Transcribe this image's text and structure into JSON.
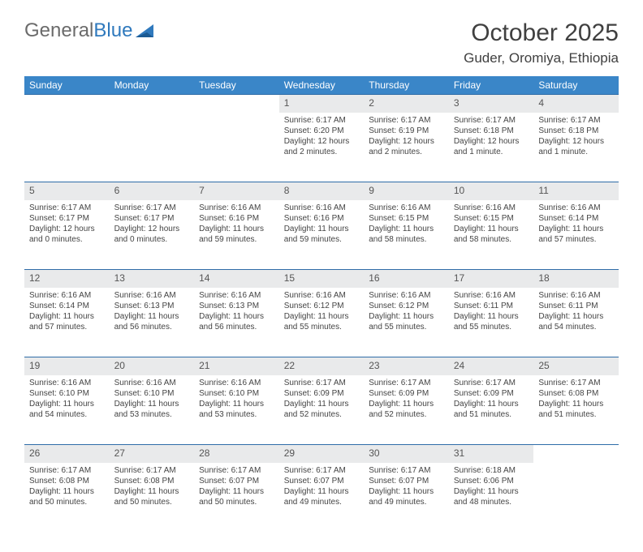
{
  "logo": {
    "text_a": "General",
    "text_b": "Blue",
    "accent": "#2f79bd",
    "gray": "#6b6b6b"
  },
  "title": "October 2025",
  "location": "Guder, Oromiya, Ethiopia",
  "theme": {
    "header_bg": "#3a86c8",
    "header_text": "#ffffff",
    "daynum_bg": "#e9eaeb",
    "row_border": "#2e6ca8",
    "body_text": "#444444",
    "page_bg": "#ffffff",
    "cell_font_size": 10,
    "header_font_size": 12,
    "title_font_size": 30,
    "location_font_size": 17
  },
  "weekdays": [
    "Sunday",
    "Monday",
    "Tuesday",
    "Wednesday",
    "Thursday",
    "Friday",
    "Saturday"
  ],
  "weeks": [
    [
      null,
      null,
      null,
      {
        "n": "1",
        "sr": "Sunrise: 6:17 AM",
        "ss": "Sunset: 6:20 PM",
        "d1": "Daylight: 12 hours",
        "d2": "and 2 minutes."
      },
      {
        "n": "2",
        "sr": "Sunrise: 6:17 AM",
        "ss": "Sunset: 6:19 PM",
        "d1": "Daylight: 12 hours",
        "d2": "and 2 minutes."
      },
      {
        "n": "3",
        "sr": "Sunrise: 6:17 AM",
        "ss": "Sunset: 6:18 PM",
        "d1": "Daylight: 12 hours",
        "d2": "and 1 minute."
      },
      {
        "n": "4",
        "sr": "Sunrise: 6:17 AM",
        "ss": "Sunset: 6:18 PM",
        "d1": "Daylight: 12 hours",
        "d2": "and 1 minute."
      }
    ],
    [
      {
        "n": "5",
        "sr": "Sunrise: 6:17 AM",
        "ss": "Sunset: 6:17 PM",
        "d1": "Daylight: 12 hours",
        "d2": "and 0 minutes."
      },
      {
        "n": "6",
        "sr": "Sunrise: 6:17 AM",
        "ss": "Sunset: 6:17 PM",
        "d1": "Daylight: 12 hours",
        "d2": "and 0 minutes."
      },
      {
        "n": "7",
        "sr": "Sunrise: 6:16 AM",
        "ss": "Sunset: 6:16 PM",
        "d1": "Daylight: 11 hours",
        "d2": "and 59 minutes."
      },
      {
        "n": "8",
        "sr": "Sunrise: 6:16 AM",
        "ss": "Sunset: 6:16 PM",
        "d1": "Daylight: 11 hours",
        "d2": "and 59 minutes."
      },
      {
        "n": "9",
        "sr": "Sunrise: 6:16 AM",
        "ss": "Sunset: 6:15 PM",
        "d1": "Daylight: 11 hours",
        "d2": "and 58 minutes."
      },
      {
        "n": "10",
        "sr": "Sunrise: 6:16 AM",
        "ss": "Sunset: 6:15 PM",
        "d1": "Daylight: 11 hours",
        "d2": "and 58 minutes."
      },
      {
        "n": "11",
        "sr": "Sunrise: 6:16 AM",
        "ss": "Sunset: 6:14 PM",
        "d1": "Daylight: 11 hours",
        "d2": "and 57 minutes."
      }
    ],
    [
      {
        "n": "12",
        "sr": "Sunrise: 6:16 AM",
        "ss": "Sunset: 6:14 PM",
        "d1": "Daylight: 11 hours",
        "d2": "and 57 minutes."
      },
      {
        "n": "13",
        "sr": "Sunrise: 6:16 AM",
        "ss": "Sunset: 6:13 PM",
        "d1": "Daylight: 11 hours",
        "d2": "and 56 minutes."
      },
      {
        "n": "14",
        "sr": "Sunrise: 6:16 AM",
        "ss": "Sunset: 6:13 PM",
        "d1": "Daylight: 11 hours",
        "d2": "and 56 minutes."
      },
      {
        "n": "15",
        "sr": "Sunrise: 6:16 AM",
        "ss": "Sunset: 6:12 PM",
        "d1": "Daylight: 11 hours",
        "d2": "and 55 minutes."
      },
      {
        "n": "16",
        "sr": "Sunrise: 6:16 AM",
        "ss": "Sunset: 6:12 PM",
        "d1": "Daylight: 11 hours",
        "d2": "and 55 minutes."
      },
      {
        "n": "17",
        "sr": "Sunrise: 6:16 AM",
        "ss": "Sunset: 6:11 PM",
        "d1": "Daylight: 11 hours",
        "d2": "and 55 minutes."
      },
      {
        "n": "18",
        "sr": "Sunrise: 6:16 AM",
        "ss": "Sunset: 6:11 PM",
        "d1": "Daylight: 11 hours",
        "d2": "and 54 minutes."
      }
    ],
    [
      {
        "n": "19",
        "sr": "Sunrise: 6:16 AM",
        "ss": "Sunset: 6:10 PM",
        "d1": "Daylight: 11 hours",
        "d2": "and 54 minutes."
      },
      {
        "n": "20",
        "sr": "Sunrise: 6:16 AM",
        "ss": "Sunset: 6:10 PM",
        "d1": "Daylight: 11 hours",
        "d2": "and 53 minutes."
      },
      {
        "n": "21",
        "sr": "Sunrise: 6:16 AM",
        "ss": "Sunset: 6:10 PM",
        "d1": "Daylight: 11 hours",
        "d2": "and 53 minutes."
      },
      {
        "n": "22",
        "sr": "Sunrise: 6:17 AM",
        "ss": "Sunset: 6:09 PM",
        "d1": "Daylight: 11 hours",
        "d2": "and 52 minutes."
      },
      {
        "n": "23",
        "sr": "Sunrise: 6:17 AM",
        "ss": "Sunset: 6:09 PM",
        "d1": "Daylight: 11 hours",
        "d2": "and 52 minutes."
      },
      {
        "n": "24",
        "sr": "Sunrise: 6:17 AM",
        "ss": "Sunset: 6:09 PM",
        "d1": "Daylight: 11 hours",
        "d2": "and 51 minutes."
      },
      {
        "n": "25",
        "sr": "Sunrise: 6:17 AM",
        "ss": "Sunset: 6:08 PM",
        "d1": "Daylight: 11 hours",
        "d2": "and 51 minutes."
      }
    ],
    [
      {
        "n": "26",
        "sr": "Sunrise: 6:17 AM",
        "ss": "Sunset: 6:08 PM",
        "d1": "Daylight: 11 hours",
        "d2": "and 50 minutes."
      },
      {
        "n": "27",
        "sr": "Sunrise: 6:17 AM",
        "ss": "Sunset: 6:08 PM",
        "d1": "Daylight: 11 hours",
        "d2": "and 50 minutes."
      },
      {
        "n": "28",
        "sr": "Sunrise: 6:17 AM",
        "ss": "Sunset: 6:07 PM",
        "d1": "Daylight: 11 hours",
        "d2": "and 50 minutes."
      },
      {
        "n": "29",
        "sr": "Sunrise: 6:17 AM",
        "ss": "Sunset: 6:07 PM",
        "d1": "Daylight: 11 hours",
        "d2": "and 49 minutes."
      },
      {
        "n": "30",
        "sr": "Sunrise: 6:17 AM",
        "ss": "Sunset: 6:07 PM",
        "d1": "Daylight: 11 hours",
        "d2": "and 49 minutes."
      },
      {
        "n": "31",
        "sr": "Sunrise: 6:18 AM",
        "ss": "Sunset: 6:06 PM",
        "d1": "Daylight: 11 hours",
        "d2": "and 48 minutes."
      },
      null
    ]
  ]
}
